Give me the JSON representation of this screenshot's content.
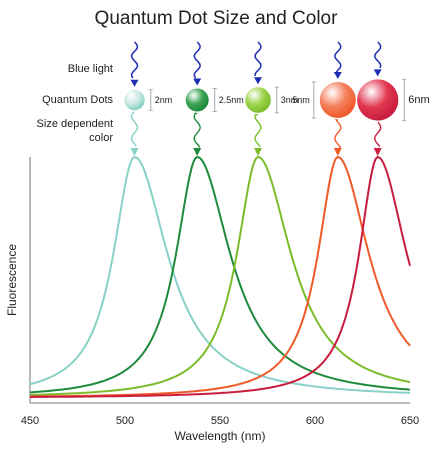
{
  "chart_data": {
    "type": "line",
    "title": "Quantum Dot Size and Color",
    "xlabel": "Wavelength (nm)",
    "ylabel": "Fluorescence",
    "xlim": [
      450,
      650
    ],
    "x_ticks": [
      "450",
      "500",
      "550",
      "600",
      "650"
    ],
    "grid": false,
    "row_labels": {
      "light": "Blue light",
      "dots": "Quantum Dots",
      "color": "Size dependent color"
    },
    "series": [
      {
        "size_label": "2nm",
        "peak": 505,
        "width": 17,
        "color": "#88d1c6",
        "dot_color": "#cde9e4",
        "dot_size": 2
      },
      {
        "size_label": "2.5nm",
        "peak": 538,
        "width": 17,
        "color": "#1f8a3c",
        "dot_color": "#3fa356",
        "dot_size": 2.5
      },
      {
        "size_label": "3nm",
        "peak": 570,
        "width": 17,
        "color": "#7cbc2b",
        "dot_color": "#9fd34c",
        "dot_size": 3
      },
      {
        "size_label": "5nm",
        "peak": 612,
        "width": 16,
        "color": "#ef5a2a",
        "dot_color": "#f47f5c",
        "dot_size": 5
      },
      {
        "size_label": "6nm",
        "peak": 633,
        "width": 15,
        "color": "#c81d3e",
        "dot_color": "#e23852",
        "dot_size": 6
      }
    ],
    "light_color": "#1f2db3"
  }
}
